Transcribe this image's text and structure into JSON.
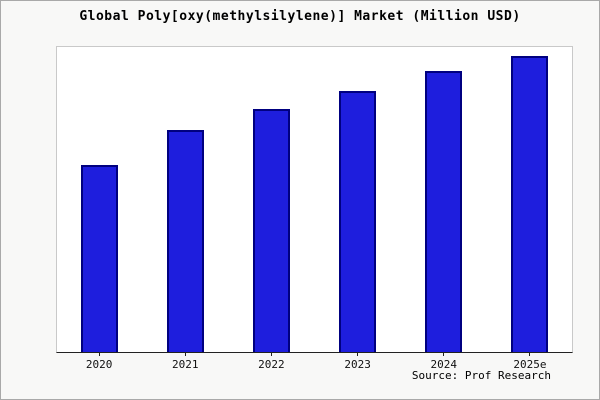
{
  "title": "Global Poly[oxy(methylsilylene)] Market (Million USD)",
  "source": "Source: Prof Research",
  "colors": {
    "bar_fill": "#1e1edd",
    "bar_border": "#000080",
    "plot_background": "#ffffff",
    "page_background": "#f8f8f7",
    "axis": "#222222"
  },
  "chart_data": {
    "type": "bar",
    "title": "Global Poly[oxy(methylsilylene)] Market (Million USD)",
    "categories": [
      "2020",
      "2021",
      "2022",
      "2023",
      "2024",
      "2025e"
    ],
    "values": [
      63,
      75,
      82,
      88,
      95,
      100
    ],
    "xlabel": "",
    "ylabel": "",
    "ylim": [
      0,
      103
    ],
    "grid": false,
    "legend": false,
    "y_axis_labels_shown": false
  }
}
